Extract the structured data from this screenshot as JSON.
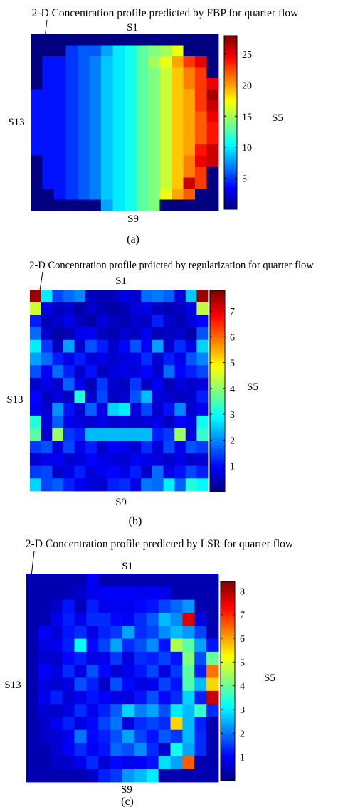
{
  "chart_data": [
    {
      "type": "heatmap",
      "title": "2-D Concentration profile predicted by FBP for quarter flow",
      "labels": {
        "top": "S1",
        "left": "S13",
        "right": "S5",
        "bottom": "S9"
      },
      "caption": "(a)",
      "colorbar": {
        "min": 0,
        "max": 28,
        "ticks": [
          5,
          10,
          15,
          20,
          25
        ]
      },
      "grid_size": [
        16,
        16
      ],
      "values": [
        [
          0,
          0,
          0,
          0,
          0,
          0,
          0,
          0,
          0,
          0,
          0,
          0,
          0,
          0,
          0,
          0
        ],
        [
          0,
          0,
          0,
          5,
          6,
          6,
          8,
          10,
          11,
          13,
          14,
          15,
          17,
          0,
          0,
          0
        ],
        [
          0,
          4,
          4,
          5,
          6,
          7,
          9,
          10,
          11,
          13,
          15,
          17,
          20,
          23,
          25,
          0
        ],
        [
          0,
          4,
          4,
          5,
          6,
          7,
          9,
          10,
          11,
          13,
          14,
          16,
          19,
          21,
          23,
          0
        ],
        [
          0,
          4,
          4,
          5,
          6,
          7,
          9,
          10,
          11,
          13,
          14,
          16,
          19,
          21,
          23,
          25
        ],
        [
          4,
          4,
          4,
          5,
          6,
          7,
          9,
          10,
          11,
          13,
          14,
          16,
          19,
          20,
          23,
          27
        ],
        [
          4,
          4,
          4,
          5,
          6,
          7,
          9,
          10,
          11,
          13,
          14,
          16,
          19,
          20,
          23,
          26
        ],
        [
          4,
          4,
          4,
          5,
          6,
          7,
          9,
          10,
          11,
          13,
          14,
          16,
          19,
          20,
          22,
          25
        ],
        [
          4,
          4,
          4,
          5,
          6,
          7,
          9,
          10,
          11,
          13,
          14,
          16,
          19,
          20,
          22,
          24
        ],
        [
          4,
          4,
          4,
          5,
          6,
          7,
          9,
          10,
          11,
          13,
          14,
          16,
          19,
          20,
          22,
          24
        ],
        [
          4,
          4,
          4,
          5,
          6,
          7,
          9,
          10,
          11,
          13,
          14,
          16,
          19,
          20,
          24,
          26
        ],
        [
          0,
          4,
          4,
          5,
          6,
          7,
          9,
          10,
          11,
          13,
          14,
          16,
          19,
          21,
          25,
          26
        ],
        [
          0,
          4,
          4,
          5,
          6,
          7,
          9,
          10,
          11,
          13,
          14,
          16,
          19,
          21,
          23,
          0
        ],
        [
          0,
          4,
          4,
          5,
          6,
          7,
          9,
          10,
          11,
          13,
          14,
          16,
          19,
          26,
          23,
          0
        ],
        [
          0,
          0,
          4,
          5,
          6,
          7,
          9,
          10,
          11,
          13,
          14,
          17,
          20,
          22,
          0,
          0
        ],
        [
          0,
          0,
          0,
          0,
          0,
          0,
          8,
          10,
          11,
          13,
          14,
          0,
          0,
          0,
          0,
          0
        ]
      ]
    },
    {
      "type": "heatmap",
      "title": "2-D Concentration profile prdicted by regularization for quarter flow",
      "labels": {
        "top": "S1",
        "left": "S13",
        "right": "S5",
        "bottom": "S9"
      },
      "caption": "(b)",
      "colorbar": {
        "min": 0,
        "max": 7.8,
        "ticks": [
          1,
          2,
          3,
          4,
          5,
          6,
          7
        ]
      },
      "grid_size": [
        16,
        16
      ],
      "values": [
        [
          7.6,
          2.8,
          1.5,
          1.8,
          2.0,
          0.5,
          0.4,
          0.5,
          0.8,
          0.6,
          1.8,
          1.9,
          1.7,
          0.7,
          2.5,
          7.6
        ],
        [
          4.5,
          0.8,
          0.5,
          0.6,
          0.3,
          0.6,
          0.4,
          0.3,
          0.4,
          0.7,
          0.8,
          0.5,
          0.4,
          0.5,
          0.8,
          4.4
        ],
        [
          1.2,
          0.4,
          0.6,
          0.8,
          0.5,
          0.3,
          0.7,
          0.5,
          0.4,
          0.6,
          0.5,
          1.2,
          0.6,
          0.4,
          0.7,
          1.0
        ],
        [
          1.8,
          0.6,
          0.3,
          0.4,
          0.8,
          0.9,
          0.5,
          0.4,
          0.6,
          0.5,
          0.8,
          0.4,
          0.5,
          0.6,
          0.3,
          1.6
        ],
        [
          2.8,
          1.4,
          0.5,
          2.2,
          0.6,
          1.6,
          1.2,
          0.6,
          1.0,
          1.6,
          0.9,
          2.2,
          0.6,
          1.3,
          0.8,
          2.6
        ],
        [
          2.2,
          1.8,
          1.2,
          0.8,
          1.2,
          0.7,
          0.8,
          0.6,
          0.7,
          0.8,
          1.3,
          0.6,
          1.2,
          0.8,
          1.6,
          2.0
        ],
        [
          1.6,
          0.9,
          1.8,
          1.2,
          0.6,
          1.1,
          0.5,
          0.7,
          0.8,
          0.7,
          1.0,
          0.6,
          1.8,
          1.0,
          1.2,
          1.5
        ],
        [
          0.6,
          0.8,
          0.6,
          1.7,
          0.8,
          0.4,
          1.4,
          0.6,
          0.5,
          1.4,
          0.5,
          0.9,
          0.4,
          0.7,
          0.6,
          0.7
        ],
        [
          1.0,
          0.5,
          0.7,
          0.5,
          3.2,
          0.6,
          1.5,
          0.5,
          0.6,
          1.6,
          2.4,
          0.7,
          0.6,
          0.5,
          0.6,
          1.2
        ],
        [
          0.9,
          0.6,
          2.1,
          1.1,
          0.6,
          1.7,
          0.8,
          2.6,
          2.8,
          0.7,
          1.5,
          0.6,
          1.1,
          2.0,
          0.6,
          0.9
        ],
        [
          3.2,
          0.7,
          1.7,
          0.8,
          0.7,
          0.6,
          0.8,
          0.6,
          0.7,
          0.6,
          0.7,
          0.8,
          0.5,
          1.0,
          0.8,
          3.0
        ],
        [
          3.6,
          0.6,
          4.1,
          1.4,
          1.2,
          2.4,
          2.4,
          2.4,
          2.4,
          2.4,
          2.4,
          1.2,
          1.4,
          4.1,
          0.7,
          3.3
        ],
        [
          1.4,
          1.6,
          0.7,
          1.5,
          0.8,
          1.2,
          0.6,
          0.9,
          0.8,
          0.6,
          1.3,
          0.7,
          1.5,
          0.8,
          1.6,
          1.4
        ],
        [
          0.6,
          0.8,
          0.9,
          0.6,
          0.7,
          1.0,
          0.8,
          0.7,
          0.6,
          0.9,
          0.8,
          0.7,
          0.6,
          0.8,
          0.6,
          0.7
        ],
        [
          1.4,
          1.5,
          0.6,
          0.8,
          1.2,
          0.7,
          0.9,
          1.0,
          0.8,
          1.2,
          0.6,
          1.8,
          0.8,
          1.1,
          1.5,
          1.2
        ],
        [
          2.6,
          1.5,
          1.7,
          1.2,
          0.9,
          0.7,
          0.6,
          1.2,
          1.3,
          0.8,
          1.9,
          1.8,
          2.8,
          1.7,
          3.2,
          2.9
        ]
      ]
    },
    {
      "type": "heatmap",
      "title": "2-D Concentration profile predicted by LSR for quarter flow",
      "labels": {
        "top": "S1",
        "left": "S13",
        "right": "S5",
        "bottom": "S9"
      },
      "caption": "(c)",
      "colorbar": {
        "min": 0,
        "max": 8.4,
        "ticks": [
          1,
          2,
          3,
          4,
          5,
          6,
          7,
          8
        ]
      },
      "grid_size": [
        16,
        16
      ],
      "values": [
        [
          0.4,
          0.4,
          0.4,
          0.4,
          0.4,
          1.0,
          0.4,
          0.4,
          0.4,
          0.4,
          0.4,
          0.4,
          0.4,
          0.4,
          0.4,
          0.4
        ],
        [
          0.4,
          0.4,
          0.4,
          0.5,
          0.6,
          0.9,
          1.0,
          1.0,
          1.0,
          0.9,
          1.0,
          0.9,
          0.4,
          0.4,
          0.4,
          0.4
        ],
        [
          0.4,
          0.4,
          0.6,
          1.2,
          0.5,
          1.3,
          0.9,
          0.9,
          0.9,
          1.1,
          1.2,
          1.6,
          1.9,
          2.3,
          0.4,
          0.4
        ],
        [
          0.4,
          0.4,
          0.9,
          1.3,
          0.9,
          1.4,
          1.4,
          1.1,
          1.0,
          1.4,
          1.8,
          2.6,
          2.2,
          7.6,
          0.8,
          0.4
        ],
        [
          0.4,
          1.0,
          0.7,
          1.2,
          1.4,
          0.8,
          1.3,
          1.5,
          2.4,
          1.4,
          1.6,
          2.2,
          2.6,
          2.3,
          1.6,
          0.4
        ],
        [
          0.4,
          0.8,
          0.9,
          1.3,
          3.2,
          1.1,
          1.6,
          2.4,
          1.4,
          1.7,
          2.2,
          1.2,
          4.6,
          3.9,
          2.4,
          1.2
        ],
        [
          0.4,
          0.7,
          0.6,
          1.1,
          1.3,
          0.8,
          0.9,
          1.5,
          0.8,
          1.4,
          1.3,
          1.6,
          1.2,
          4.2,
          1.7,
          4.0
        ],
        [
          0.4,
          1.0,
          0.8,
          1.4,
          0.8,
          1.7,
          1.1,
          0.7,
          0.9,
          1.2,
          1.6,
          0.8,
          1.5,
          3.9,
          1.3,
          6.4
        ],
        [
          0.4,
          0.8,
          0.7,
          0.8,
          1.7,
          1.3,
          0.6,
          1.7,
          1.1,
          0.8,
          0.9,
          1.6,
          1.2,
          3.8,
          2.6,
          5.6
        ],
        [
          0.4,
          0.9,
          1.3,
          0.7,
          0.9,
          1.2,
          1.0,
          0.8,
          0.8,
          1.2,
          1.7,
          1.1,
          1.4,
          2.8,
          1.3,
          7.8
        ],
        [
          0.4,
          0.7,
          0.6,
          0.8,
          1.4,
          0.9,
          1.3,
          1.8,
          2.8,
          2.1,
          2.4,
          1.7,
          3.0,
          2.6,
          3.6,
          1.4
        ],
        [
          0.4,
          0.6,
          0.9,
          1.3,
          0.8,
          1.1,
          1.6,
          2.0,
          0.8,
          1.4,
          1.6,
          1.4,
          5.6,
          2.6,
          1.3,
          0.4
        ],
        [
          0.4,
          0.6,
          0.7,
          0.9,
          2.0,
          1.1,
          1.3,
          1.7,
          2.4,
          1.6,
          1.2,
          1.8,
          1.5,
          2.6,
          1.4,
          0.4
        ],
        [
          0.4,
          0.4,
          0.7,
          1.0,
          1.4,
          1.0,
          1.2,
          1.9,
          1.7,
          2.2,
          1.4,
          0.6,
          3.3,
          2.4,
          1.4,
          0.4
        ],
        [
          0.4,
          0.4,
          0.6,
          0.6,
          0.9,
          1.4,
          0.7,
          1.1,
          0.9,
          1.0,
          1.2,
          2.9,
          2.4,
          6.6,
          0.4,
          0.4
        ],
        [
          0.4,
          0.4,
          0.4,
          0.4,
          0.4,
          0.6,
          1.3,
          1.5,
          2.3,
          2.6,
          3.0,
          0.4,
          0.4,
          0.4,
          0.4,
          0.4
        ]
      ]
    }
  ]
}
